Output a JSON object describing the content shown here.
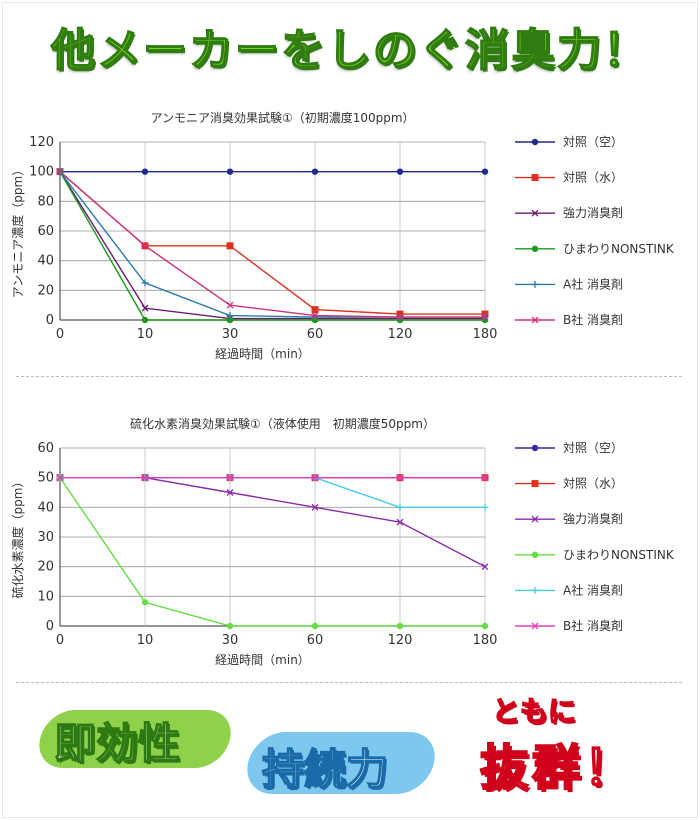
{
  "header": {
    "headline": "他メーカーをしのぐ消臭力！"
  },
  "badges": {
    "quick": "即効性",
    "lasting": "持続力",
    "sub": "ともに",
    "outstanding": "抜群！"
  },
  "chart_data": [
    {
      "type": "line",
      "title": "アンモニア消臭効果試験①（初期濃度100ppm）",
      "xlabel": "経過時間（min）",
      "ylabel": "アンモニア濃度（ppm）",
      "categories": [
        "0",
        "10",
        "30",
        "60",
        "120",
        "180"
      ],
      "ylim": [
        0,
        120
      ],
      "yticks": [
        "0",
        "20",
        "40",
        "60",
        "80",
        "100",
        "120"
      ],
      "grid": true,
      "legend_position": "right",
      "series": [
        {
          "name": "対照（空）",
          "color": "#1f2a8f",
          "marker": "circle",
          "values": [
            100,
            100,
            100,
            100,
            100,
            100
          ]
        },
        {
          "name": "対照（水）",
          "color": "#e03020",
          "marker": "square",
          "values": [
            100,
            50,
            50,
            7,
            4,
            4
          ]
        },
        {
          "name": "強力消臭剤",
          "color": "#6a1a6a",
          "marker": "x",
          "values": [
            100,
            8,
            1,
            1,
            1,
            1
          ]
        },
        {
          "name": "ひまわりNONSTINK",
          "color": "#1a9a1a",
          "marker": "circle",
          "values": [
            100,
            0,
            0,
            0,
            0,
            0
          ]
        },
        {
          "name": "A社 消臭剤",
          "color": "#2a7ab0",
          "marker": "plus",
          "values": [
            100,
            25,
            3,
            2,
            2,
            2
          ]
        },
        {
          "name": "B社 消臭剤",
          "color": "#d0307a",
          "marker": "x",
          "values": [
            100,
            50,
            10,
            3,
            2,
            2
          ]
        }
      ]
    },
    {
      "type": "line",
      "title": "硫化水素消臭効果試験①（液体使用　初期濃度50ppm）",
      "xlabel": "経過時間（min）",
      "ylabel": "硫化水素濃度（ppm）",
      "categories": [
        "0",
        "10",
        "30",
        "60",
        "120",
        "180"
      ],
      "ylim": [
        0,
        60
      ],
      "yticks": [
        "0",
        "10",
        "20",
        "30",
        "40",
        "50",
        "60"
      ],
      "grid": true,
      "legend_position": "right",
      "series": [
        {
          "name": "対照（空）",
          "color": "#3a2aa8",
          "marker": "circle",
          "values": [
            50,
            50,
            50,
            50,
            50,
            50
          ]
        },
        {
          "name": "対照（水）",
          "color": "#e03020",
          "marker": "square",
          "values": [
            50,
            50,
            50,
            50,
            50,
            50
          ]
        },
        {
          "name": "強力消臭剤",
          "color": "#8a2aa8",
          "marker": "x",
          "values": [
            50,
            50,
            45,
            40,
            35,
            20
          ]
        },
        {
          "name": "ひまわりNONSTINK",
          "color": "#66dd44",
          "marker": "circle",
          "values": [
            50,
            8,
            0,
            0,
            0,
            0
          ]
        },
        {
          "name": "A社 消臭剤",
          "color": "#44ccee",
          "marker": "plus",
          "values": [
            50,
            50,
            50,
            50,
            40,
            40
          ]
        },
        {
          "name": "B社 消臭剤",
          "color": "#e040c0",
          "marker": "x",
          "values": [
            50,
            50,
            50,
            50,
            50,
            50
          ]
        }
      ]
    }
  ]
}
